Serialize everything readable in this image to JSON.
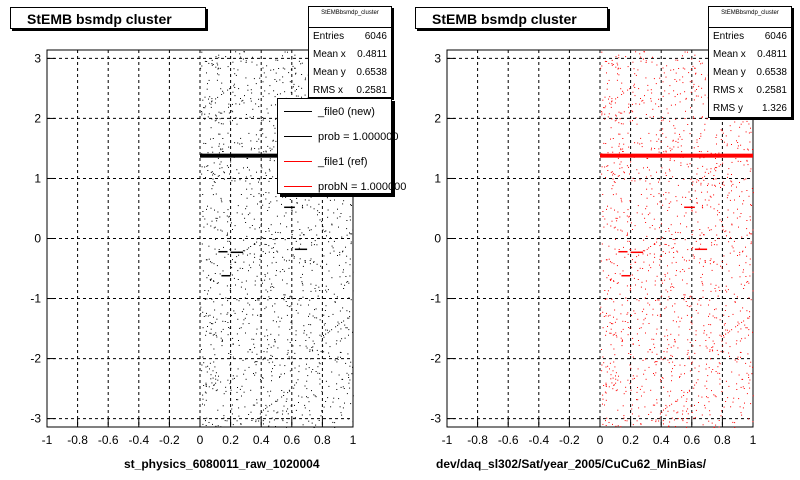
{
  "panels": [
    {
      "title": "StEMB bsmdp cluster",
      "stats": {
        "name": "StEMBbsmdp_cluster",
        "rows": [
          {
            "label": "Entries",
            "value": "6046"
          },
          {
            "label": "Mean x",
            "value": "0.4811"
          },
          {
            "label": "Mean y",
            "value": "0.6538"
          },
          {
            "label": "RMS x",
            "value": "0.2581"
          }
        ]
      },
      "legend": [
        {
          "label": "_file0 (new)",
          "color": "#000000"
        },
        {
          "label": "prob = 1.000000",
          "color": "#000000"
        },
        {
          "label": "_file1 (ref)",
          "color": "#ff0000"
        },
        {
          "label": "probN = 1.000000",
          "color": "#ff0000"
        }
      ],
      "xtitle": "st_physics_6080011_raw_1020004",
      "color": "#000000"
    },
    {
      "title": "StEMB bsmdp cluster",
      "stats": {
        "name": "StEMBbsmdp_cluster",
        "rows": [
          {
            "label": "Entries",
            "value": "6046"
          },
          {
            "label": "Mean x",
            "value": "0.4811"
          },
          {
            "label": "Mean y",
            "value": "0.6538"
          },
          {
            "label": "RMS x",
            "value": "0.2581"
          },
          {
            "label": "RMS y",
            "value": "1.326"
          }
        ]
      },
      "xtitle": "dev/daq_sl302/Sat/year_2005/CuCu62_MinBias/",
      "color": "#ff0000"
    }
  ],
  "chart_data": [
    {
      "type": "scatter",
      "xlim": [
        -1,
        1
      ],
      "ylim": [
        -3.14,
        3.14
      ],
      "xticks": [
        "-1",
        "-0.8",
        "-0.6",
        "-0.4",
        "-0.2",
        "0",
        "0.2",
        "0.4",
        "0.6",
        "0.8",
        "1"
      ],
      "yticks": [
        "-3",
        "-2",
        "-1",
        "0",
        "1",
        "2",
        "3"
      ],
      "grid": true,
      "band": {
        "x": [
          0.0,
          1.0
        ],
        "y": 1.38
      },
      "segments": [
        {
          "x": [
            0.12,
            0.18
          ],
          "y": -0.22
        },
        {
          "x": [
            0.2,
            0.28
          ],
          "y": -0.23
        },
        {
          "x": [
            0.14,
            0.2
          ],
          "y": -0.62
        },
        {
          "x": [
            0.55,
            0.62
          ],
          "y": 0.52
        },
        {
          "x": [
            0.62,
            0.7
          ],
          "y": -0.18
        }
      ],
      "density": {
        "x": [
          0.0,
          1.0
        ],
        "y": [
          -3.14,
          3.14
        ],
        "entries": 6046
      }
    },
    {
      "type": "scatter",
      "xlim": [
        -1,
        1
      ],
      "ylim": [
        -3.14,
        3.14
      ],
      "xticks": [
        "-1",
        "-0.8",
        "-0.6",
        "-0.4",
        "-0.2",
        "0",
        "0.2",
        "0.4",
        "0.6",
        "0.8",
        "1"
      ],
      "yticks": [
        "-3",
        "-2",
        "-1",
        "0",
        "1",
        "2",
        "3"
      ],
      "grid": true,
      "band": {
        "x": [
          0.0,
          1.0
        ],
        "y": 1.38
      },
      "segments": [
        {
          "x": [
            0.12,
            0.18
          ],
          "y": -0.22
        },
        {
          "x": [
            0.2,
            0.28
          ],
          "y": -0.23
        },
        {
          "x": [
            0.14,
            0.2
          ],
          "y": -0.62
        },
        {
          "x": [
            0.55,
            0.62
          ],
          "y": 0.52
        },
        {
          "x": [
            0.62,
            0.7
          ],
          "y": -0.18
        }
      ],
      "density": {
        "x": [
          0.0,
          1.0
        ],
        "y": [
          -3.14,
          3.14
        ],
        "entries": 6046
      }
    }
  ]
}
